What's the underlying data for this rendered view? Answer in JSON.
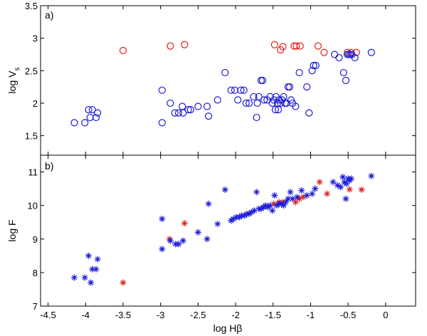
{
  "chart_data": [
    {
      "type": "scatter",
      "panel_label": "a)",
      "xlabel": "",
      "ylabel_base": "log V",
      "ylabel_sub": "s",
      "xlim": [
        -4.6,
        0.4
      ],
      "ylim": [
        1.2,
        3.5
      ],
      "yticks": [
        1.5,
        2,
        2.5,
        3,
        3.5
      ],
      "ytick_labels": [
        "1.5",
        "2",
        "2.5",
        "3",
        "3.5"
      ],
      "marker": "circle",
      "series": [
        {
          "name": "red",
          "color": "#e0201c",
          "points": [
            [
              -3.5,
              2.81
            ],
            [
              -2.87,
              2.88
            ],
            [
              -2.68,
              2.9
            ],
            [
              -1.48,
              2.9
            ],
            [
              -1.4,
              2.82
            ],
            [
              -1.37,
              2.87
            ],
            [
              -1.22,
              2.88
            ],
            [
              -1.19,
              2.88
            ],
            [
              -1.14,
              2.88
            ],
            [
              -0.9,
              2.88
            ],
            [
              -0.82,
              2.78
            ],
            [
              -0.51,
              2.78
            ],
            [
              -0.46,
              2.78
            ],
            [
              -0.39,
              2.78
            ]
          ]
        },
        {
          "name": "blue",
          "color": "#1c1cd6",
          "points": [
            [
              -4.15,
              1.7
            ],
            [
              -4.01,
              1.7
            ],
            [
              -3.96,
              1.9
            ],
            [
              -3.91,
              1.9
            ],
            [
              -3.94,
              1.78
            ],
            [
              -3.86,
              1.78
            ],
            [
              -3.84,
              1.85
            ],
            [
              -2.98,
              2.2
            ],
            [
              -2.98,
              1.7
            ],
            [
              -2.87,
              2.0
            ],
            [
              -2.81,
              1.85
            ],
            [
              -2.76,
              1.85
            ],
            [
              -2.71,
              1.95
            ],
            [
              -2.7,
              1.85
            ],
            [
              -2.63,
              1.9
            ],
            [
              -2.6,
              1.9
            ],
            [
              -2.5,
              1.95
            ],
            [
              -2.38,
              1.95
            ],
            [
              -2.36,
              1.8
            ],
            [
              -2.24,
              2.05
            ],
            [
              -2.14,
              2.47
            ],
            [
              -2.06,
              2.2
            ],
            [
              -2.01,
              2.2
            ],
            [
              -1.97,
              2.05
            ],
            [
              -1.93,
              2.2
            ],
            [
              -1.89,
              2.2
            ],
            [
              -1.86,
              2.0
            ],
            [
              -1.82,
              2.0
            ],
            [
              -1.76,
              2.1
            ],
            [
              -1.71,
              2.0
            ],
            [
              -1.69,
              2.1
            ],
            [
              -1.66,
              2.35
            ],
            [
              -1.64,
              2.35
            ],
            [
              -1.62,
              2.05
            ],
            [
              -1.58,
              2.05
            ],
            [
              -1.54,
              2.1
            ],
            [
              -1.51,
              2.0
            ],
            [
              -1.49,
              2.05
            ],
            [
              -1.46,
              2.1
            ],
            [
              -1.44,
              2.0
            ],
            [
              -1.42,
              2.05
            ],
            [
              -1.4,
              2.0
            ],
            [
              -1.38,
              2.05
            ],
            [
              -1.36,
              2.1
            ],
            [
              -1.34,
              2.0
            ],
            [
              -1.32,
              2.0
            ],
            [
              -1.3,
              2.25
            ],
            [
              -1.28,
              2.25
            ],
            [
              -1.26,
              2.05
            ],
            [
              -1.24,
              2.0
            ],
            [
              -1.47,
              1.9
            ],
            [
              -1.43,
              1.9
            ],
            [
              -1.72,
              1.78
            ],
            [
              -1.2,
              1.95
            ],
            [
              -1.15,
              2.47
            ],
            [
              -1.05,
              2.25
            ],
            [
              -1.02,
              1.85
            ],
            [
              -0.98,
              2.5
            ],
            [
              -0.96,
              2.58
            ],
            [
              -0.93,
              2.58
            ],
            [
              -0.68,
              2.75
            ],
            [
              -0.62,
              2.7
            ],
            [
              -0.56,
              2.47
            ],
            [
              -0.53,
              2.35
            ],
            [
              -0.51,
              2.75
            ],
            [
              -0.49,
              2.75
            ],
            [
              -0.47,
              2.75
            ],
            [
              -0.45,
              2.75
            ],
            [
              -0.41,
              2.7
            ],
            [
              -0.19,
              2.78
            ]
          ]
        }
      ]
    },
    {
      "type": "scatter",
      "panel_label": "b)",
      "xlabel": "log Hβ",
      "ylabel": "log F",
      "xlim": [
        -4.6,
        0.4
      ],
      "ylim": [
        7,
        11.5
      ],
      "xticks": [
        -4.5,
        -4,
        -3.5,
        -3,
        -2.5,
        -2,
        -1.5,
        -1,
        -0.5,
        0
      ],
      "xtick_labels": [
        "-4.5",
        "-4",
        "-3.5",
        "-3",
        "-2.5",
        "-2",
        "-1.5",
        "-1",
        "-0.5",
        "0"
      ],
      "yticks": [
        7,
        8,
        9,
        10,
        11
      ],
      "ytick_labels": [
        "7",
        "8",
        "9",
        "10",
        "11"
      ],
      "marker": "asterisk",
      "series": [
        {
          "name": "red",
          "color": "#e0201c",
          "points": [
            [
              -3.5,
              7.7
            ],
            [
              -2.88,
              9.0
            ],
            [
              -2.68,
              9.47
            ],
            [
              -1.49,
              10.05
            ],
            [
              -1.42,
              10.1
            ],
            [
              -1.37,
              10.1
            ],
            [
              -1.2,
              10.1
            ],
            [
              -1.15,
              10.2
            ],
            [
              -1.1,
              10.25
            ],
            [
              -0.88,
              10.7
            ],
            [
              -0.78,
              10.35
            ],
            [
              -0.48,
              10.48
            ],
            [
              -0.32,
              10.47
            ]
          ]
        },
        {
          "name": "blue",
          "color": "#1c1cd6",
          "points": [
            [
              -4.15,
              7.85
            ],
            [
              -4.01,
              7.85
            ],
            [
              -3.96,
              8.5
            ],
            [
              -3.91,
              8.1
            ],
            [
              -3.93,
              7.7
            ],
            [
              -3.86,
              8.1
            ],
            [
              -3.84,
              8.4
            ],
            [
              -2.98,
              9.6
            ],
            [
              -2.98,
              8.7
            ],
            [
              -2.87,
              8.95
            ],
            [
              -2.8,
              8.85
            ],
            [
              -2.76,
              8.85
            ],
            [
              -2.7,
              8.95
            ],
            [
              -2.5,
              9.2
            ],
            [
              -2.38,
              9.0
            ],
            [
              -2.36,
              10.05
            ],
            [
              -2.24,
              9.45
            ],
            [
              -2.14,
              10.47
            ],
            [
              -2.06,
              9.55
            ],
            [
              -2.03,
              9.6
            ],
            [
              -1.99,
              9.65
            ],
            [
              -1.95,
              9.65
            ],
            [
              -1.92,
              9.7
            ],
            [
              -1.88,
              9.7
            ],
            [
              -1.85,
              9.75
            ],
            [
              -1.82,
              9.75
            ],
            [
              -1.79,
              9.8
            ],
            [
              -1.75,
              9.85
            ],
            [
              -1.72,
              10.4
            ],
            [
              -1.69,
              9.9
            ],
            [
              -1.66,
              9.9
            ],
            [
              -1.63,
              9.95
            ],
            [
              -1.6,
              10.0
            ],
            [
              -1.57,
              9.95
            ],
            [
              -1.54,
              10.0
            ],
            [
              -1.51,
              9.85
            ],
            [
              -1.48,
              10.3
            ],
            [
              -1.45,
              10.0
            ],
            [
              -1.42,
              10.05
            ],
            [
              -1.39,
              10.05
            ],
            [
              -1.36,
              10.0
            ],
            [
              -1.33,
              10.1
            ],
            [
              -1.3,
              10.2
            ],
            [
              -1.27,
              10.4
            ],
            [
              -1.24,
              10.2
            ],
            [
              -1.18,
              10.25
            ],
            [
              -1.12,
              10.45
            ],
            [
              -1.05,
              10.3
            ],
            [
              -0.98,
              10.35
            ],
            [
              -0.94,
              10.5
            ],
            [
              -0.7,
              10.7
            ],
            [
              -0.64,
              10.6
            ],
            [
              -0.6,
              10.55
            ],
            [
              -0.57,
              10.85
            ],
            [
              -0.55,
              10.7
            ],
            [
              -0.52,
              10.65
            ],
            [
              -0.5,
              10.8
            ],
            [
              -0.48,
              10.75
            ],
            [
              -0.46,
              10.8
            ],
            [
              -0.53,
              10.2
            ],
            [
              -0.19,
              10.88
            ]
          ]
        }
      ]
    }
  ]
}
